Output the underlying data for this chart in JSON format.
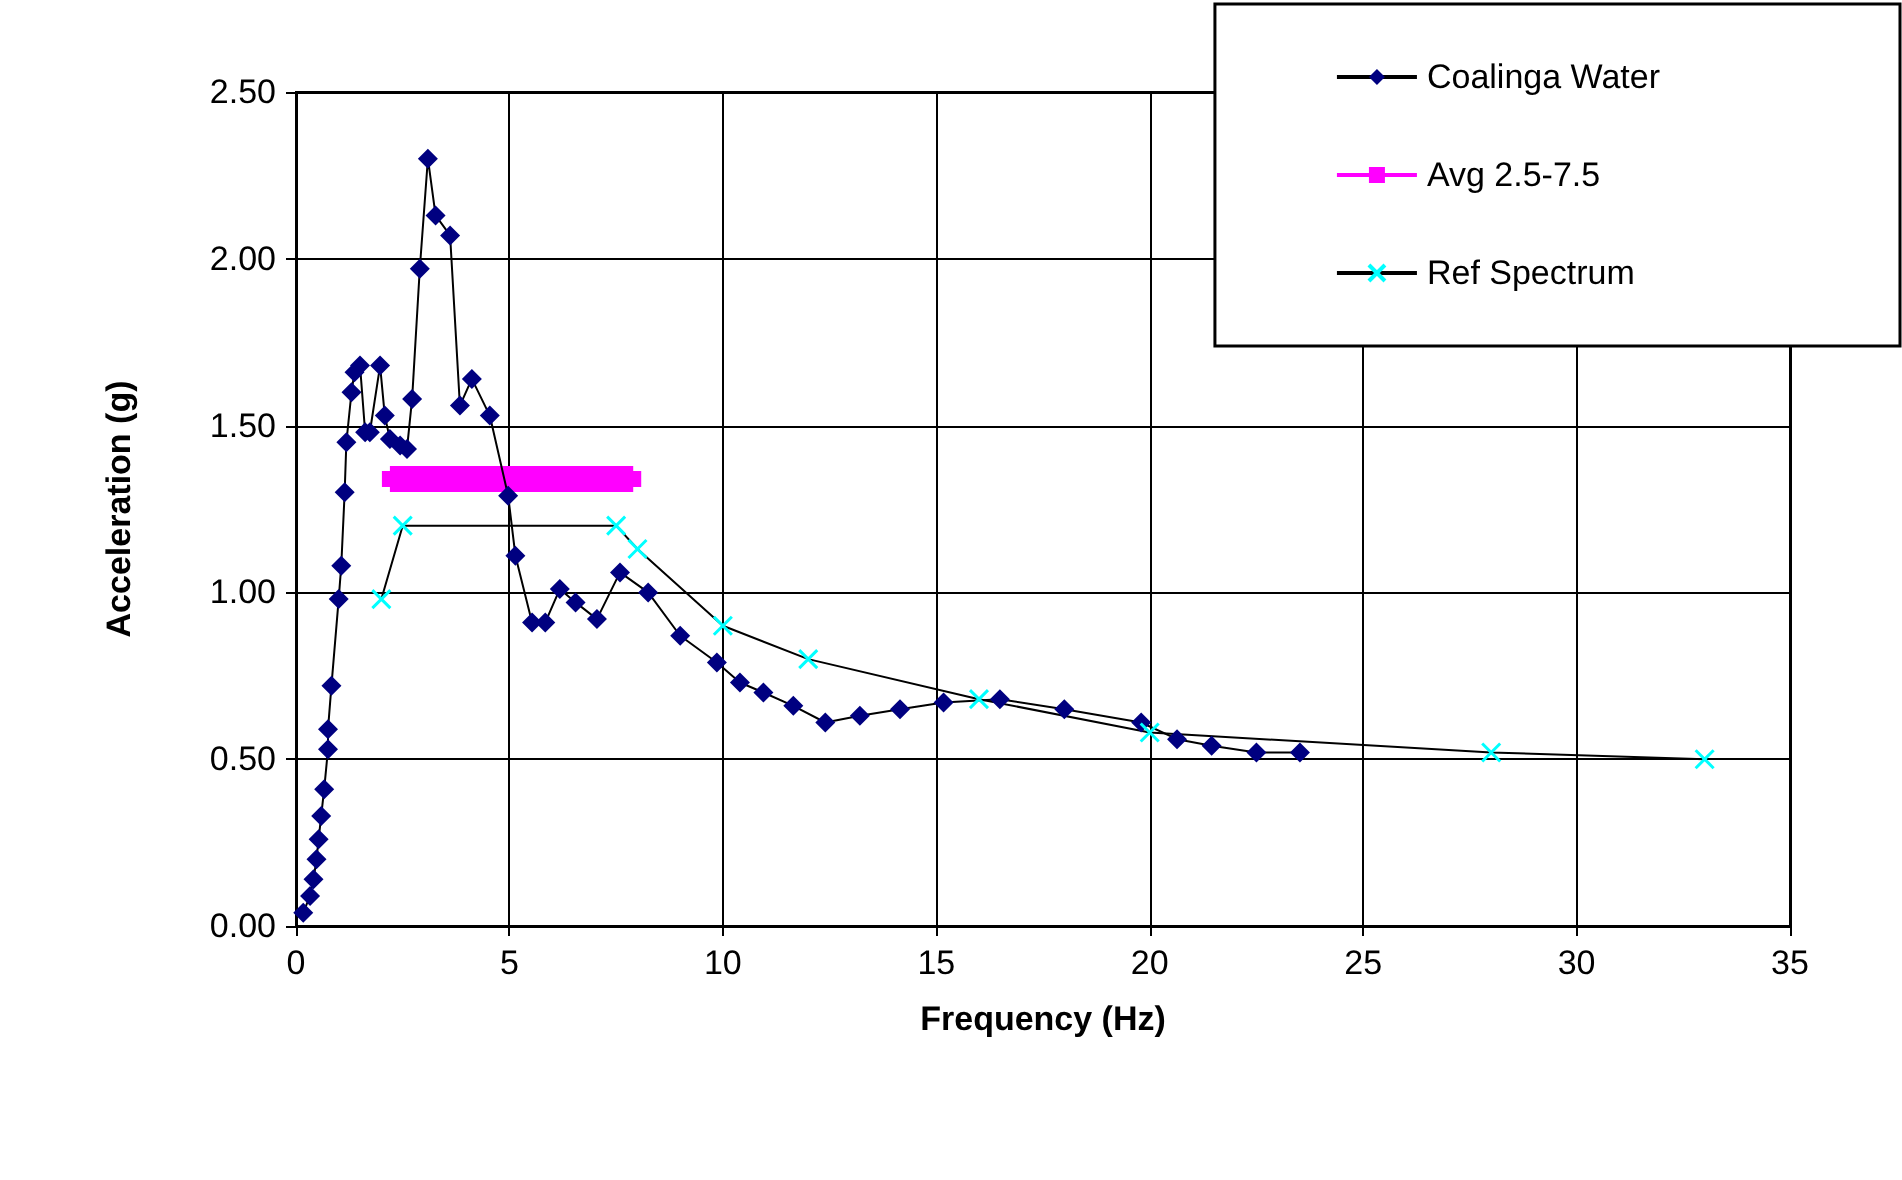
{
  "chart_data": {
    "type": "line",
    "xlabel": "Frequency (Hz)",
    "ylabel": "Acceleration (g)",
    "xlim": [
      0,
      35
    ],
    "xticks": [
      0,
      5,
      10,
      15,
      20,
      25,
      30,
      35
    ],
    "ylim": [
      0,
      2.5
    ],
    "yticks": [
      {
        "value": 0,
        "label": "0.00"
      },
      {
        "value": 0.5,
        "label": "0.50"
      },
      {
        "value": 1,
        "label": "1.00"
      },
      {
        "value": 1.5,
        "label": "1.50"
      },
      {
        "value": 2,
        "label": "2.00"
      },
      {
        "value": 2.5,
        "label": "2.50"
      }
    ],
    "grid": true,
    "legend": "top right",
    "line_style": "solid",
    "series": [
      {
        "name": "Coalinga Water",
        "color": "#000080",
        "marker": "diamond",
        "x": [
          0.17,
          0.33,
          0.41,
          0.48,
          0.53,
          0.59,
          0.66,
          0.75,
          0.75,
          0.83,
          1.0,
          1.06,
          1.14,
          1.18,
          1.3,
          1.37,
          1.5,
          1.62,
          1.73,
          1.97,
          2.08,
          2.2,
          2.44,
          2.6,
          2.72,
          2.9,
          3.09,
          3.27,
          3.61,
          3.84,
          4.12,
          4.54,
          4.97,
          5.14,
          5.53,
          5.84,
          6.18,
          6.55,
          7.05,
          7.59,
          8.25,
          9.0,
          9.86,
          10.4,
          10.95,
          11.65,
          12.4,
          13.21,
          14.15,
          15.17,
          16.49,
          18.0,
          19.8,
          20.64,
          21.45,
          22.5,
          23.52
        ],
        "values": [
          0.04,
          0.09,
          0.14,
          0.2,
          0.26,
          0.33,
          0.41,
          0.53,
          0.59,
          0.72,
          0.98,
          1.08,
          1.3,
          1.45,
          1.6,
          1.66,
          1.68,
          1.48,
          1.48,
          1.68,
          1.53,
          1.46,
          1.44,
          1.43,
          1.58,
          1.97,
          2.3,
          2.13,
          2.07,
          1.56,
          1.64,
          1.53,
          1.29,
          1.11,
          0.91,
          0.91,
          1.01,
          0.97,
          0.92,
          1.06,
          1.0,
          0.87,
          0.79,
          0.73,
          0.7,
          0.66,
          0.61,
          0.63,
          0.65,
          0.67,
          0.68,
          0.65,
          0.61,
          0.56,
          0.54,
          0.52,
          0.52
        ]
      },
      {
        "name": "Avg 2.5-7.5",
        "color": "#ff00ff",
        "marker": "square",
        "x": [
          2.2,
          7.9
        ],
        "values": [
          1.34,
          1.34
        ]
      },
      {
        "name": "Ref Spectrum",
        "color": "#00ffff",
        "marker": "cross",
        "x": [
          2,
          2.5,
          7.5,
          8,
          10,
          12,
          16,
          20,
          28,
          33
        ],
        "values": [
          0.98,
          1.2,
          1.2,
          1.13,
          0.9,
          0.8,
          0.68,
          0.58,
          0.52,
          0.5
        ]
      }
    ]
  }
}
